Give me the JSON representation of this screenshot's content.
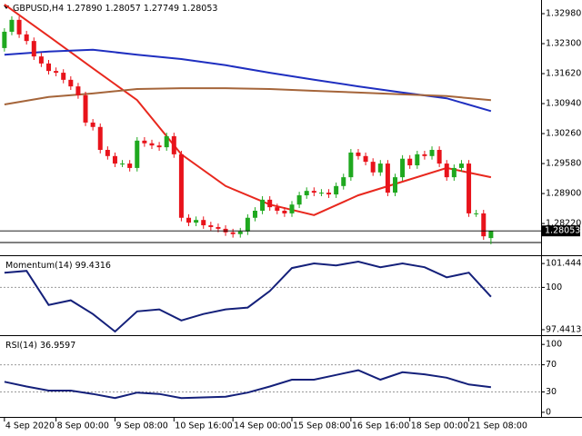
{
  "chart_data": [
    {
      "type": "candlestick",
      "title": "GBPUSD,H4",
      "ohlc_value_labels": [
        "1.27890",
        "1.28057",
        "1.27749",
        "1.28053"
      ],
      "categories": [
        "4 Sep 2020",
        null,
        null,
        null,
        null,
        null,
        null,
        "8 Sep 00:00",
        null,
        null,
        null,
        null,
        null,
        null,
        null,
        "9 Sep 08:00",
        null,
        null,
        null,
        null,
        null,
        null,
        null,
        "10 Sep 16:00",
        null,
        null,
        null,
        null,
        null,
        null,
        null,
        "14 Sep 00:00",
        null,
        null,
        null,
        null,
        null,
        null,
        null,
        "15 Sep 08:00",
        null,
        null,
        null,
        null,
        null,
        null,
        null,
        "16 Sep 16:00",
        null,
        null,
        null,
        null,
        null,
        null,
        null,
        "18 Sep 00:00",
        null,
        null,
        null,
        null,
        null,
        null,
        null,
        "21 Sep 08:00",
        null,
        null,
        null
      ],
      "open": [
        1.322,
        1.3257,
        1.3284,
        1.3251,
        1.3236,
        1.3201,
        1.3185,
        1.3168,
        1.3164,
        1.3148,
        1.3133,
        1.3113,
        1.3051,
        1.3041,
        1.2989,
        1.2975,
        1.2958,
        1.2958,
        1.2948,
        1.301,
        1.3004,
        1.2999,
        1.2995,
        1.302,
        1.2979,
        1.2835,
        1.2824,
        1.283,
        1.2818,
        1.2814,
        1.281,
        1.2802,
        1.2798,
        1.2804,
        1.2835,
        1.2851,
        1.2876,
        1.2859,
        1.2851,
        1.2845,
        1.2865,
        1.2886,
        1.2896,
        1.2892,
        1.2892,
        1.2888,
        1.2907,
        1.2927,
        1.2983,
        1.2975,
        1.2962,
        1.2938,
        1.2958,
        1.2892,
        1.2927,
        1.2969,
        1.2954,
        1.2979,
        1.2975,
        1.2989,
        1.2958,
        1.2927,
        1.2948,
        1.2958,
        1.2845,
        1.2845,
        1.2789
      ],
      "high": [
        1.3265,
        1.3292,
        1.3292,
        1.3259,
        1.3244,
        1.3209,
        1.3193,
        1.3176,
        1.3172,
        1.3156,
        1.3141,
        1.3121,
        1.3059,
        1.3049,
        1.2997,
        1.2983,
        1.2966,
        1.2966,
        1.3018,
        1.3018,
        1.3012,
        1.3007,
        1.3028,
        1.3028,
        1.2987,
        1.2843,
        1.2838,
        1.2838,
        1.2826,
        1.2822,
        1.2818,
        1.281,
        1.2812,
        1.2843,
        1.2859,
        1.2884,
        1.2884,
        1.2867,
        1.2859,
        1.2873,
        1.2894,
        1.2904,
        1.2904,
        1.29,
        1.29,
        1.2915,
        1.2935,
        1.2991,
        1.2991,
        1.2983,
        1.297,
        1.2966,
        1.2966,
        1.2935,
        1.2977,
        1.2977,
        1.2987,
        1.2987,
        1.2997,
        1.2997,
        1.2966,
        1.2956,
        1.2966,
        1.2966,
        1.2853,
        1.2853,
        1.28057
      ],
      "low": [
        1.3212,
        1.3249,
        1.3243,
        1.3228,
        1.3193,
        1.3177,
        1.316,
        1.3156,
        1.314,
        1.3125,
        1.3105,
        1.3043,
        1.3033,
        1.2981,
        1.2967,
        1.295,
        1.295,
        1.294,
        1.294,
        1.2996,
        1.2991,
        1.2987,
        1.2987,
        1.2971,
        1.2827,
        1.2816,
        1.2816,
        1.281,
        1.2806,
        1.2802,
        1.2794,
        1.279,
        1.279,
        1.2796,
        1.2827,
        1.2843,
        1.2851,
        1.2843,
        1.2837,
        1.2837,
        1.2857,
        1.2878,
        1.2884,
        1.2884,
        1.288,
        1.288,
        1.2899,
        1.2919,
        1.2967,
        1.2954,
        1.293,
        1.293,
        1.2884,
        1.2884,
        1.2919,
        1.2946,
        1.2946,
        1.2967,
        1.2967,
        1.295,
        1.2919,
        1.2919,
        1.294,
        1.2837,
        1.2837,
        1.2785,
        1.27749
      ],
      "close": [
        1.3257,
        1.3284,
        1.3251,
        1.3236,
        1.3201,
        1.3185,
        1.3168,
        1.3164,
        1.3148,
        1.3133,
        1.3113,
        1.3051,
        1.3041,
        1.2989,
        1.2975,
        1.2958,
        1.2958,
        1.2948,
        1.301,
        1.3004,
        1.2999,
        1.2995,
        1.302,
        1.2979,
        1.2835,
        1.2824,
        1.283,
        1.2818,
        1.2814,
        1.281,
        1.2802,
        1.2798,
        1.2804,
        1.2835,
        1.2851,
        1.2876,
        1.2859,
        1.2851,
        1.2845,
        1.2865,
        1.2886,
        1.2896,
        1.2892,
        1.2892,
        1.2888,
        1.2907,
        1.2927,
        1.2983,
        1.2975,
        1.2962,
        1.2938,
        1.2958,
        1.2892,
        1.2927,
        1.2969,
        1.2954,
        1.2979,
        1.2975,
        1.2989,
        1.2958,
        1.2927,
        1.2948,
        1.2958,
        1.2845,
        1.2845,
        1.2793,
        1.28053
      ],
      "up_color": "#1fa81f",
      "down_color": "#e8131b",
      "overlays": [
        {
          "color": "#e8281e",
          "x": [
            0,
            6,
            12,
            18,
            24,
            30,
            36,
            42,
            48,
            54,
            60,
            66
          ],
          "values": [
            1.3319,
            1.3247,
            1.3174,
            1.3102,
            1.2979,
            1.2907,
            1.2865,
            1.2841,
            1.2886,
            1.2917,
            1.2948,
            1.2927
          ]
        },
        {
          "color": "#1f2fc0",
          "x": [
            0,
            6,
            12,
            18,
            24,
            30,
            36,
            42,
            48,
            54,
            60,
            66
          ],
          "values": [
            1.3205,
            1.3212,
            1.3216,
            1.3205,
            1.3195,
            1.3181,
            1.3164,
            1.3148,
            1.3133,
            1.3119,
            1.3106,
            1.3077
          ]
        },
        {
          "color": "#a5653a",
          "x": [
            0,
            6,
            12,
            18,
            24,
            30,
            36,
            42,
            48,
            54,
            60,
            66
          ],
          "values": [
            1.3092,
            1.3109,
            1.3117,
            1.3127,
            1.3129,
            1.3129,
            1.3127,
            1.3123,
            1.3119,
            1.3115,
            1.3111,
            1.3102
          ]
        }
      ],
      "xlim": [
        -0.6,
        72.8
      ],
      "ylim": [
        1.2783,
        1.3329
      ],
      "yticks": [
        {
          "value": 1.3298,
          "label": "1.32980"
        },
        {
          "value": 1.323,
          "label": "1.32300"
        },
        {
          "value": 1.3162,
          "label": "1.31620"
        },
        {
          "value": 1.3094,
          "label": "1.30940"
        },
        {
          "value": 1.3026,
          "label": "1.30260"
        },
        {
          "value": 1.2958,
          "label": "1.29580"
        },
        {
          "value": 1.289,
          "label": "1.28900"
        },
        {
          "value": 1.2822,
          "label": "1.28220"
        }
      ]
    },
    {
      "type": "line",
      "title": "Momentum(14)",
      "color": "#14207a",
      "x": [
        0,
        3,
        6,
        9,
        12,
        15,
        18,
        21,
        24,
        27,
        30,
        33,
        36,
        39,
        42,
        45,
        48,
        51,
        54,
        57,
        60,
        63,
        66
      ],
      "values": [
        100.89,
        101.0,
        98.94,
        99.22,
        98.39,
        97.33,
        98.55,
        98.67,
        98.0,
        98.39,
        98.67,
        98.78,
        99.78,
        101.17,
        101.45,
        101.33,
        101.56,
        101.22,
        101.45,
        101.22,
        100.61,
        100.89,
        99.4316
      ],
      "xlim": [
        -0.6,
        72.8
      ],
      "ylim": [
        97.11,
        101.89
      ],
      "yticks": [
        101.4442,
        100,
        97.4413
      ],
      "levels": [
        100
      ]
    },
    {
      "type": "line",
      "title": "RSI(14)",
      "color": "#14207a",
      "x": [
        0,
        3,
        6,
        9,
        12,
        15,
        18,
        21,
        24,
        27,
        30,
        33,
        36,
        39,
        42,
        45,
        48,
        51,
        54,
        57,
        60,
        63,
        66
      ],
      "values": [
        45,
        38,
        32,
        32,
        27,
        21,
        29,
        27,
        21,
        22,
        23,
        29,
        38,
        48,
        48,
        55,
        62,
        48,
        59,
        56,
        51,
        41,
        36.9597
      ],
      "xlim": [
        -0.6,
        72.8
      ],
      "ylim": [
        -6.8,
        112.3
      ],
      "yticks": [
        100,
        70,
        30,
        0
      ],
      "levels": [
        70,
        30
      ]
    }
  ]
}
